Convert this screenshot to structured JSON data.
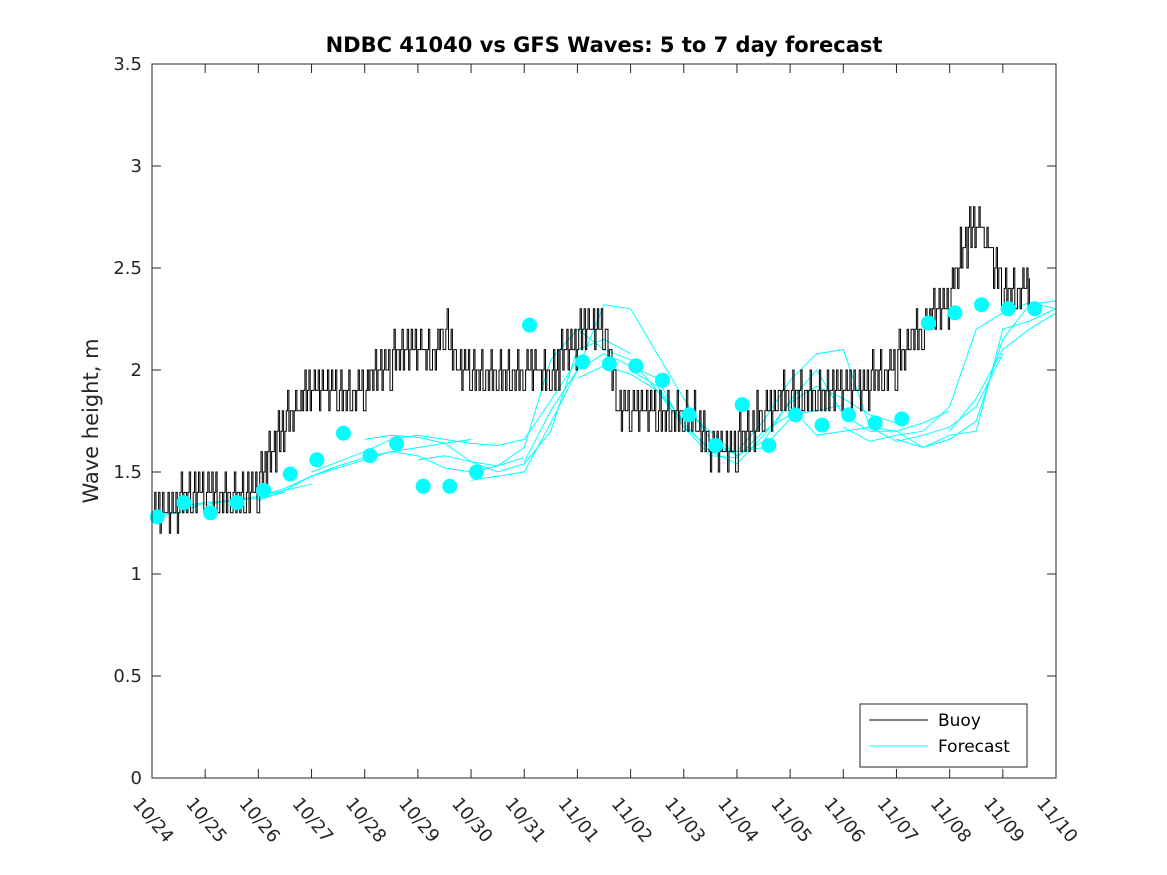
{
  "chart_data": {
    "type": "line",
    "title": "NDBC 41040 vs GFS Waves: 5 to 7 day forecast",
    "xlabel": "",
    "ylabel": "Wave height, m",
    "xlim": [
      0,
      17
    ],
    "ylim": [
      0,
      3.5
    ],
    "x_tick_labels": [
      "10/24",
      "10/25",
      "10/26",
      "10/27",
      "10/28",
      "10/29",
      "10/30",
      "10/31",
      "11/01",
      "11/02",
      "11/03",
      "11/04",
      "11/05",
      "11/06",
      "11/07",
      "11/08",
      "11/09",
      "11/10"
    ],
    "y_ticks": [
      0,
      0.5,
      1,
      1.5,
      2,
      2.5,
      3,
      3.5
    ],
    "y_tick_labels": [
      "0",
      "0.5",
      "1",
      "1.5",
      "2",
      "2.5",
      "3",
      "3.5"
    ],
    "legend": {
      "location": "bottom-right",
      "entries": [
        {
          "label": "Buoy",
          "color": "#000000"
        },
        {
          "label": "Forecast",
          "color": "#00ffff"
        }
      ]
    },
    "colors": {
      "buoy": "#000000",
      "forecast": "#00ffff",
      "axes": "#262626"
    },
    "buoy": {
      "name": "Buoy",
      "x": [
        0,
        0.25,
        0.5,
        0.75,
        1,
        1.25,
        1.5,
        1.75,
        2,
        2.25,
        2.5,
        2.75,
        3,
        3.25,
        3.5,
        3.75,
        4,
        4.25,
        4.5,
        4.75,
        5,
        5.25,
        5.5,
        5.75,
        6,
        6.25,
        6.5,
        6.75,
        7,
        7.25,
        7.5,
        7.75,
        8,
        8.25,
        8.5,
        8.75,
        9,
        9.25,
        9.5,
        9.75,
        10,
        10.25,
        10.5,
        10.75,
        11,
        11.25,
        11.5,
        11.75,
        12,
        12.25,
        12.5,
        12.75,
        13,
        13.25,
        13.5,
        13.75,
        14,
        14.25,
        14.5,
        14.75,
        15,
        15.25,
        15.5,
        15.75,
        16,
        16.25,
        16.5
      ],
      "values": [
        1.35,
        1.32,
        1.35,
        1.4,
        1.42,
        1.38,
        1.36,
        1.4,
        1.45,
        1.6,
        1.75,
        1.82,
        1.95,
        1.93,
        1.9,
        1.88,
        1.92,
        2.0,
        2.05,
        2.1,
        2.15,
        2.05,
        2.2,
        2.0,
        2.02,
        1.95,
        1.95,
        1.95,
        2.0,
        2.0,
        1.95,
        2.1,
        2.15,
        2.25,
        2.2,
        1.85,
        1.8,
        1.85,
        1.8,
        1.75,
        1.8,
        1.75,
        1.65,
        1.62,
        1.65,
        1.7,
        1.8,
        1.85,
        1.9,
        1.85,
        1.88,
        1.9,
        1.95,
        1.92,
        1.95,
        1.95,
        2.05,
        2.15,
        2.2,
        2.3,
        2.35,
        2.6,
        2.75,
        2.6,
        2.4,
        2.35,
        2.45
      ]
    },
    "forecast_series": [
      {
        "x": [
          0,
          0.5,
          1,
          1.5,
          2,
          2.5
        ],
        "values": [
          1.28,
          1.3,
          1.35,
          1.36,
          1.37,
          1.4
        ]
      },
      {
        "x": [
          0.5,
          1,
          1.5,
          2,
          2.5,
          3
        ],
        "values": [
          1.33,
          1.35,
          1.36,
          1.38,
          1.41,
          1.44
        ]
      },
      {
        "x": [
          1,
          1.5,
          2,
          2.5,
          3,
          3.5,
          4,
          4.5,
          5,
          5.5,
          6
        ],
        "values": [
          1.34,
          1.36,
          1.38,
          1.42,
          1.48,
          1.52,
          1.56,
          1.6,
          1.62,
          1.64,
          1.66
        ]
      },
      {
        "x": [
          2,
          2.5,
          3,
          3.5,
          4,
          4.5,
          5,
          5.5,
          6,
          6.5,
          7
        ],
        "values": [
          1.36,
          1.41,
          1.48,
          1.53,
          1.57,
          1.6,
          1.58,
          1.52,
          1.5,
          1.53,
          1.57
        ]
      },
      {
        "x": [
          3,
          3.5,
          4,
          4.5,
          5,
          5.5,
          6,
          6.5,
          7,
          7.5,
          8
        ],
        "values": [
          1.5,
          1.55,
          1.6,
          1.66,
          1.68,
          1.66,
          1.64,
          1.63,
          1.66,
          1.85,
          2.05
        ]
      },
      {
        "x": [
          4,
          4.5,
          5,
          5.5,
          6,
          6.5,
          7,
          7.5,
          8,
          8.5,
          9
        ],
        "values": [
          1.66,
          1.68,
          1.67,
          1.64,
          1.55,
          1.5,
          1.54,
          1.7,
          2.1,
          2.15,
          2.08
        ]
      },
      {
        "x": [
          5,
          5.5,
          6,
          6.5,
          7,
          7.5,
          8,
          8.5,
          9,
          9.5,
          10
        ],
        "values": [
          1.56,
          1.58,
          1.55,
          1.53,
          1.62,
          2.05,
          2.2,
          2.1,
          2.05,
          1.9,
          1.75
        ]
      },
      {
        "x": [
          6,
          6.5,
          7,
          7.5,
          8,
          8.5,
          9,
          9.5,
          10,
          10.5,
          11
        ],
        "values": [
          1.46,
          1.48,
          1.5,
          1.74,
          2.0,
          2.32,
          2.3,
          2.08,
          1.86,
          1.66,
          1.58
        ]
      },
      {
        "x": [
          7,
          7.5,
          8,
          8.5,
          9,
          9.5,
          10,
          10.5,
          11,
          11.5,
          12
        ],
        "values": [
          1.55,
          1.8,
          2.0,
          2.08,
          2.02,
          1.96,
          1.72,
          1.62,
          1.6,
          1.62,
          1.76
        ]
      },
      {
        "x": [
          8,
          8.5,
          9,
          9.5,
          10,
          10.5,
          11,
          11.5,
          12,
          12.5,
          13
        ],
        "values": [
          1.96,
          2.02,
          1.98,
          1.9,
          1.72,
          1.58,
          1.57,
          1.7,
          1.78,
          1.8,
          1.83
        ]
      },
      {
        "x": [
          9,
          9.5,
          10,
          10.5,
          11,
          11.5,
          12,
          12.5,
          13,
          13.5,
          14
        ],
        "values": [
          2.0,
          1.92,
          1.74,
          1.6,
          1.54,
          1.68,
          1.84,
          1.92,
          1.86,
          1.78,
          1.74
        ]
      },
      {
        "x": [
          10,
          10.5,
          11,
          11.5,
          12,
          12.5,
          13,
          13.5,
          14,
          14.5,
          15
        ],
        "values": [
          1.8,
          1.7,
          1.58,
          1.65,
          1.85,
          2.0,
          1.78,
          1.7,
          1.7,
          1.74,
          1.8
        ]
      },
      {
        "x": [
          11,
          11.5,
          12,
          12.5,
          13,
          13.5,
          14,
          14.5,
          15,
          15.5,
          16
        ],
        "values": [
          1.6,
          1.75,
          1.95,
          2.08,
          2.1,
          1.72,
          1.65,
          1.68,
          1.72,
          1.82,
          2.08
        ]
      },
      {
        "x": [
          12,
          12.5,
          13,
          13.5,
          14,
          14.5,
          15,
          15.5,
          16,
          16.5,
          17
        ],
        "values": [
          1.82,
          1.68,
          1.7,
          1.72,
          1.7,
          1.62,
          1.66,
          1.75,
          2.15,
          2.32,
          2.34
        ]
      },
      {
        "x": [
          13,
          13.5,
          14,
          14.5,
          15,
          15.5,
          16,
          16.5,
          17
        ],
        "values": [
          1.72,
          1.65,
          1.68,
          1.7,
          1.82,
          2.2,
          2.28,
          2.33,
          2.3
        ]
      },
      {
        "x": [
          14,
          14.5,
          15,
          15.5,
          16,
          16.5,
          17
        ],
        "values": [
          1.66,
          1.62,
          1.68,
          1.7,
          2.2,
          2.24,
          2.3
        ]
      },
      {
        "x": [
          15,
          15.5,
          16,
          16.5,
          17
        ],
        "values": [
          1.7,
          1.86,
          2.1,
          2.2,
          2.28
        ]
      }
    ],
    "forecast_points": {
      "x": [
        0.1,
        0.6,
        1.1,
        1.6,
        2.1,
        2.6,
        3.1,
        3.6,
        4.1,
        4.6,
        5.1,
        5.6,
        6.1,
        7.1,
        8.1,
        8.6,
        9.1,
        9.6,
        10.1,
        10.6,
        11.1,
        11.6,
        12.1,
        12.6,
        13.1,
        13.6,
        14.1,
        14.6,
        15.1,
        15.6,
        16.1,
        16.6
      ],
      "values": [
        1.28,
        1.35,
        1.3,
        1.35,
        1.41,
        1.49,
        1.56,
        1.69,
        1.58,
        1.64,
        1.43,
        1.43,
        1.5,
        2.22,
        2.04,
        2.03,
        2.02,
        1.95,
        1.78,
        1.63,
        1.83,
        1.63,
        1.78,
        1.73,
        1.78,
        1.74,
        1.76,
        2.23,
        2.28,
        2.32,
        2.3,
        2.3
      ]
    }
  }
}
